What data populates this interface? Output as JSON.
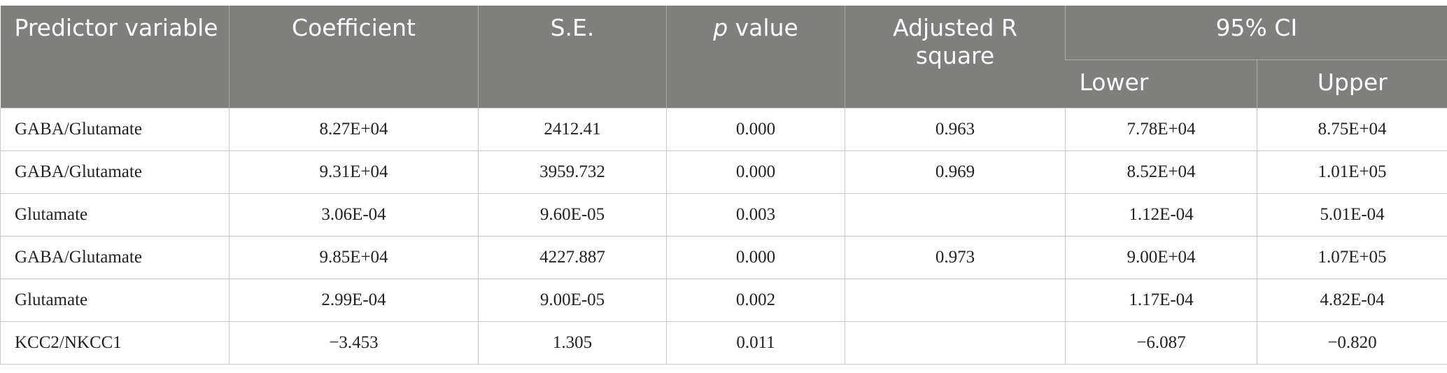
{
  "table": {
    "header": {
      "columns": [
        "Predictor variable",
        "Coefficient",
        "S.E.",
        "p value",
        "Adjusted R square"
      ],
      "group": "95% CI",
      "subcolumns": [
        "Lower",
        "Upper"
      ]
    },
    "rows": [
      [
        "GABA/Glutamate",
        "8.27E+04",
        "2412.41",
        "0.000",
        "0.963",
        "7.78E+04",
        "8.75E+04"
      ],
      [
        "GABA/Glutamate",
        "9.31E+04",
        "3959.732",
        "0.000",
        "0.969",
        "8.52E+04",
        "1.01E+05"
      ],
      [
        "Glutamate",
        "3.06E-04",
        "9.60E-05",
        "0.003",
        null,
        "1.12E-04",
        "5.01E-04"
      ],
      [
        "GABA/Glutamate",
        "9.85E+04",
        "4227.887",
        "0.000",
        "0.973",
        "9.00E+04",
        "1.07E+05"
      ],
      [
        "Glutamate",
        "2.99E-04",
        "9.00E-05",
        "0.002",
        null,
        "1.17E-04",
        "4.82E-04"
      ],
      [
        "KCC2/NKCC1",
        "−3.453",
        "1.305",
        "0.011",
        null,
        "−6.087",
        "−0.820"
      ]
    ]
  }
}
